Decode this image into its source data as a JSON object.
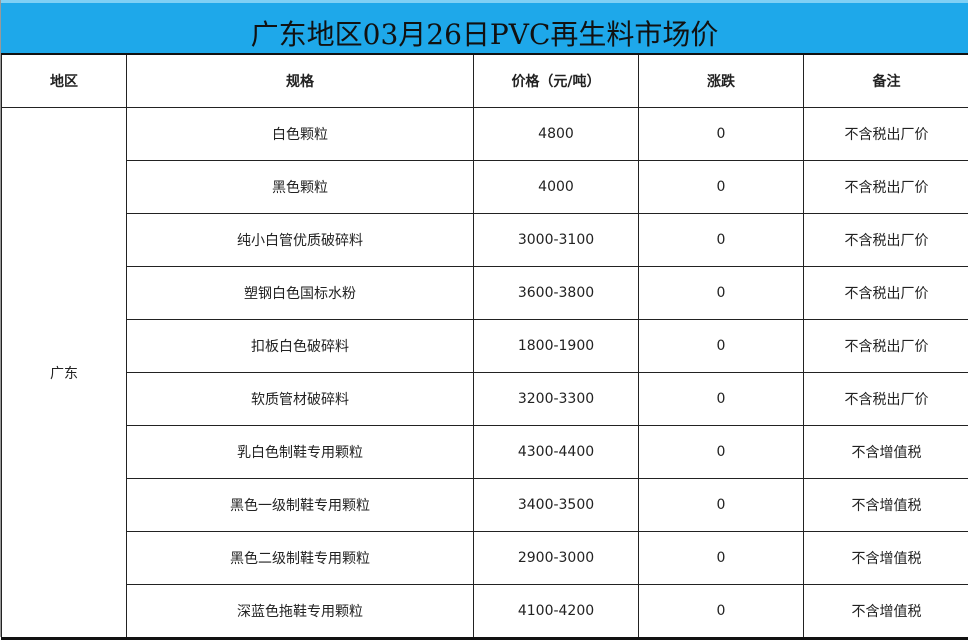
{
  "title": "广东地区03月26日PVC再生料市场价",
  "colors": {
    "title_bg": "#1ea8ea"
  },
  "headers": [
    "地区",
    "规格",
    "价格（元/吨）",
    "涨跌",
    "备注"
  ],
  "region": "广东",
  "rows": [
    {
      "spec": "白色颗粒",
      "price": "4800",
      "change": "0",
      "note": "不含税出厂价"
    },
    {
      "spec": "黑色颗粒",
      "price": "4000",
      "change": "0",
      "note": "不含税出厂价"
    },
    {
      "spec": "纯小白管优质破碎料",
      "price": "3000-3100",
      "change": "0",
      "note": "不含税出厂价"
    },
    {
      "spec": "塑钢白色国标水粉",
      "price": "3600-3800",
      "change": "0",
      "note": "不含税出厂价"
    },
    {
      "spec": "扣板白色破碎料",
      "price": "1800-1900",
      "change": "0",
      "note": "不含税出厂价"
    },
    {
      "spec": "软质管材破碎料",
      "price": "3200-3300",
      "change": "0",
      "note": "不含税出厂价"
    },
    {
      "spec": "乳白色制鞋专用颗粒",
      "price": "4300-4400",
      "change": "0",
      "note": "不含增值税"
    },
    {
      "spec": "黑色一级制鞋专用颗粒",
      "price": "3400-3500",
      "change": "0",
      "note": "不含增值税"
    },
    {
      "spec": "黑色二级制鞋专用颗粒",
      "price": "2900-3000",
      "change": "0",
      "note": "不含增值税"
    },
    {
      "spec": "深蓝色拖鞋专用颗粒",
      "price": "4100-4200",
      "change": "0",
      "note": "不含增值税"
    }
  ]
}
